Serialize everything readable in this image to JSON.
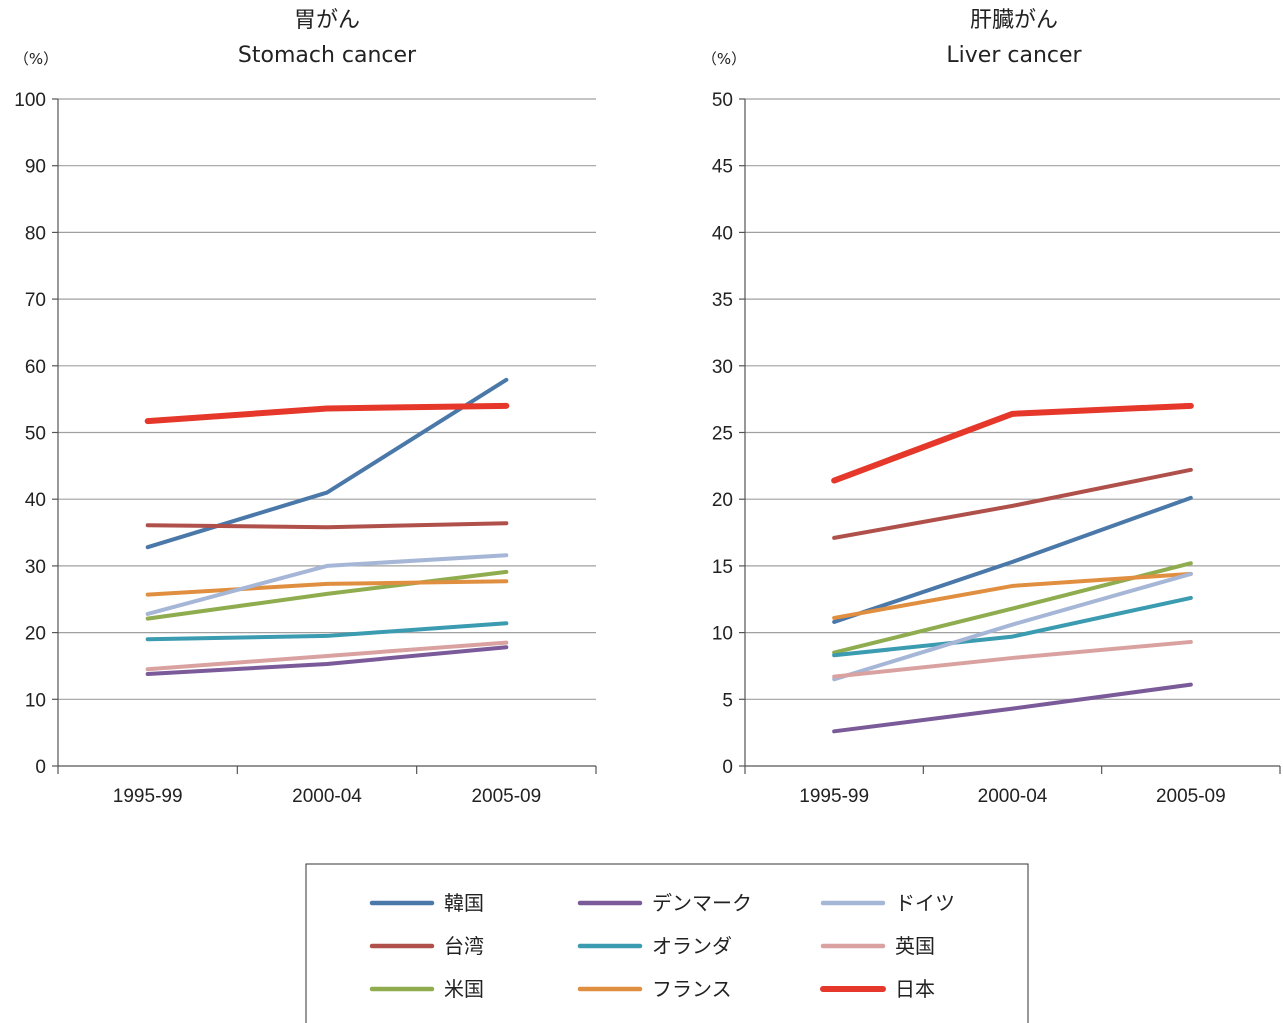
{
  "chart_data": [
    {
      "type": "line",
      "title": "胃がん",
      "subtitle": "Stomach cancer",
      "unit": "（%）",
      "categories": [
        "1995-99",
        "2000-04",
        "2005-09"
      ],
      "ylim": [
        0,
        100
      ],
      "yticks": [
        0,
        10,
        20,
        30,
        40,
        50,
        60,
        70,
        80,
        90,
        100
      ],
      "grid": true,
      "series": [
        {
          "name": "韓国",
          "values": [
            32.8,
            41.0,
            57.9
          ]
        },
        {
          "name": "台湾",
          "values": [
            36.1,
            35.8,
            36.4
          ]
        },
        {
          "name": "米国",
          "values": [
            22.1,
            25.8,
            29.1
          ]
        },
        {
          "name": "デンマーク",
          "values": [
            13.8,
            15.3,
            17.8
          ]
        },
        {
          "name": "オランダ",
          "values": [
            19.0,
            19.5,
            21.4
          ]
        },
        {
          "name": "フランス",
          "values": [
            25.7,
            27.3,
            27.7
          ]
        },
        {
          "name": "ドイツ",
          "values": [
            22.8,
            30.0,
            31.6
          ]
        },
        {
          "name": "英国",
          "values": [
            14.5,
            16.5,
            18.5
          ]
        },
        {
          "name": "日本",
          "values": [
            51.7,
            53.6,
            54.0
          ]
        }
      ]
    },
    {
      "type": "line",
      "title": "肝臓がん",
      "subtitle": "Liver cancer",
      "unit": "（%）",
      "categories": [
        "1995-99",
        "2000-04",
        "2005-09"
      ],
      "ylim": [
        0,
        50
      ],
      "yticks": [
        0,
        5,
        10,
        15,
        20,
        25,
        30,
        35,
        40,
        45,
        50
      ],
      "grid": true,
      "series": [
        {
          "name": "韓国",
          "values": [
            10.8,
            15.3,
            20.1
          ]
        },
        {
          "name": "台湾",
          "values": [
            17.1,
            19.5,
            22.2
          ]
        },
        {
          "name": "米国",
          "values": [
            8.5,
            11.8,
            15.2
          ]
        },
        {
          "name": "デンマーク",
          "values": [
            2.6,
            4.3,
            6.1
          ]
        },
        {
          "name": "オランダ",
          "values": [
            8.3,
            9.7,
            12.6
          ]
        },
        {
          "name": "フランス",
          "values": [
            11.1,
            13.5,
            14.4
          ]
        },
        {
          "name": "ドイツ",
          "values": [
            6.5,
            10.6,
            14.4
          ]
        },
        {
          "name": "英国",
          "values": [
            6.7,
            8.1,
            9.3
          ]
        },
        {
          "name": "日本",
          "values": [
            21.4,
            26.4,
            27.0
          ]
        }
      ]
    }
  ],
  "legend": {
    "placement": "bottom-center",
    "items": [
      {
        "name": "韓国",
        "color": "#4a78a9"
      },
      {
        "name": "デンマーク",
        "color": "#7a5a98"
      },
      {
        "name": "ドイツ",
        "color": "#a6b6d6"
      },
      {
        "name": "台湾",
        "color": "#b0504b"
      },
      {
        "name": "オランダ",
        "color": "#3b9bb0"
      },
      {
        "name": "英国",
        "color": "#d9a2a1"
      },
      {
        "name": "米国",
        "color": "#8fac4f"
      },
      {
        "name": "フランス",
        "color": "#e08f40"
      },
      {
        "name": "日本",
        "color": "#e5372a"
      }
    ]
  },
  "colors": {
    "韓国": "#4a78a9",
    "台湾": "#b0504b",
    "米国": "#8fac4f",
    "デンマーク": "#7a5a98",
    "オランダ": "#3b9bb0",
    "フランス": "#e08f40",
    "ドイツ": "#a6b6d6",
    "英国": "#d9a2a1",
    "日本": "#e5372a",
    "grid": "#a0a0a0",
    "axis": "#555555"
  }
}
